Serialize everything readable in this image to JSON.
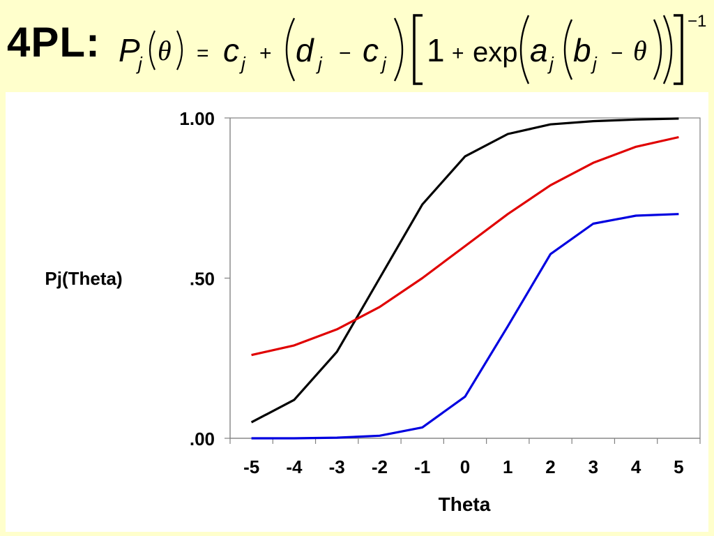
{
  "header": {
    "model_label": "4PL:",
    "formula": {
      "P": "P",
      "j": "j",
      "theta": "θ",
      "equals": "=",
      "c": "c",
      "plus": "+",
      "d": "d",
      "minus": "−",
      "one": "1",
      "exp": "exp",
      "a": "a",
      "b": "b",
      "neg_one": "−1"
    }
  },
  "chart_data": {
    "type": "line",
    "title": "",
    "xlabel": "Theta",
    "ylabel": "Pj(Theta)",
    "x": [
      -5,
      -4,
      -3,
      -2,
      -1,
      0,
      1,
      2,
      3,
      4,
      5
    ],
    "x_tick_labels": [
      "-5",
      "-4",
      "-3",
      "-2",
      "-1",
      "0",
      "1",
      "2",
      "3",
      "4",
      "5"
    ],
    "y_ticks": [
      0,
      0.5,
      1
    ],
    "y_tick_labels": [
      ".00",
      ".50",
      "1.00"
    ],
    "ylim": [
      0,
      1
    ],
    "grid": false,
    "legend": "none",
    "series": [
      {
        "color": "#000000",
        "values": [
          0.05,
          0.12,
          0.27,
          0.5,
          0.73,
          0.88,
          0.95,
          0.98,
          0.99,
          0.995,
          0.998
        ]
      },
      {
        "color": "#e00000",
        "values": [
          0.26,
          0.29,
          0.34,
          0.41,
          0.5,
          0.6,
          0.7,
          0.79,
          0.86,
          0.91,
          0.94
        ]
      },
      {
        "color": "#0000e0",
        "values": [
          0.0,
          0.0,
          0.002,
          0.008,
          0.034,
          0.13,
          0.35,
          0.575,
          0.67,
          0.695,
          0.7
        ]
      }
    ]
  }
}
